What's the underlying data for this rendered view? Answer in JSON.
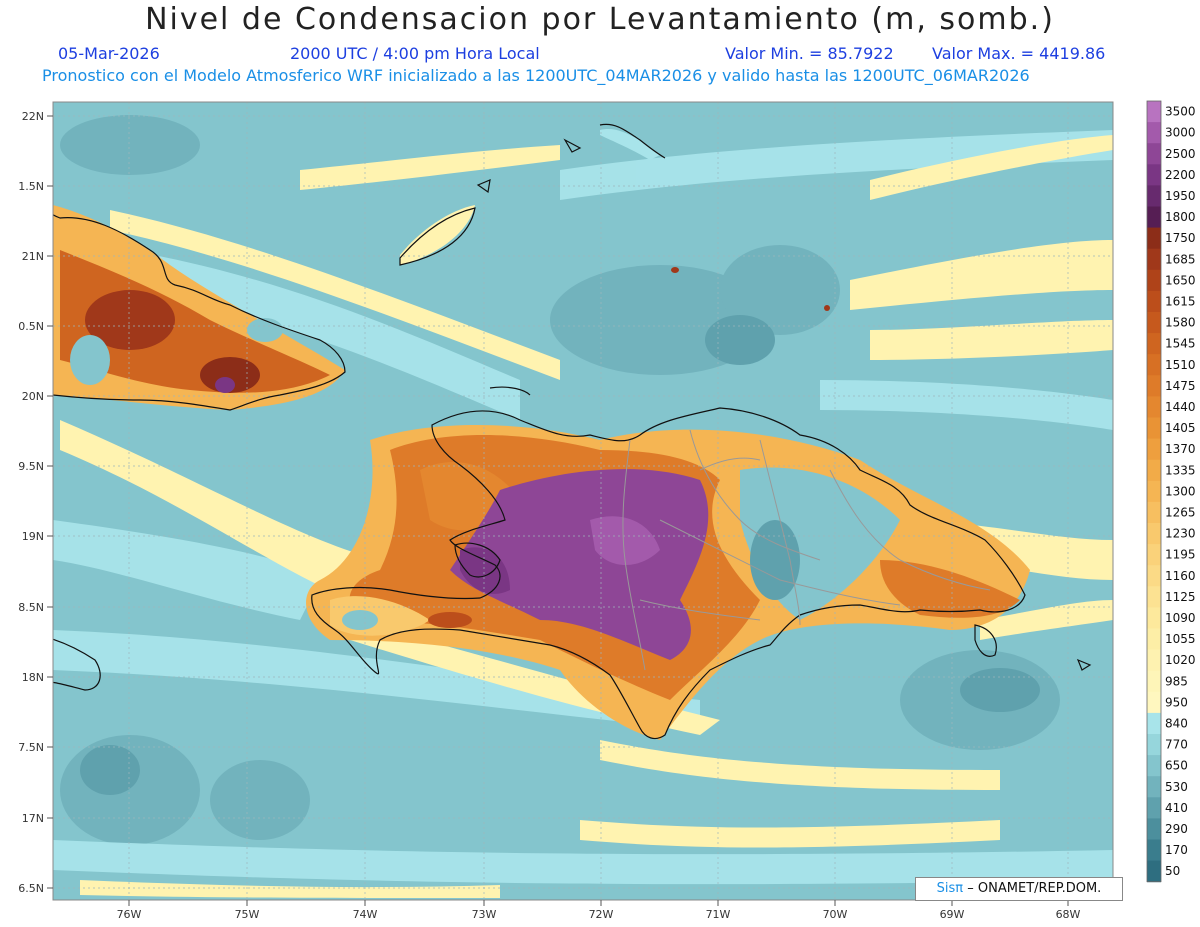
{
  "header": {
    "title": "Nivel de Condensacion por Levantamiento (m, somb.)",
    "date": "05-Mar-2026",
    "time": "2000 UTC / 4:00 pm Hora Local",
    "min_value": "Valor Min. = 85.7922",
    "max_value": "Valor Max. = 4419.86",
    "forecast": "Pronostico con el Modelo Atmosferico WRF inicializado a las 1200UTC_04MAR2026 y valido hasta las  1200UTC_06MAR2026"
  },
  "axes": {
    "lat_labels": [
      "22N",
      "1.5N",
      "21N",
      "0.5N",
      "20N",
      "9.5N",
      "19N",
      "8.5N",
      "18N",
      "7.5N",
      "17N",
      "6.5N"
    ],
    "lon_labels": [
      "76W",
      "75W",
      "74W",
      "73W",
      "72W",
      "71W",
      "70W",
      "69W",
      "68W"
    ]
  },
  "colorbar": {
    "labels": [
      "3500",
      "3000",
      "2500",
      "2200",
      "1950",
      "1800",
      "1750",
      "1685",
      "1650",
      "1615",
      "1580",
      "1545",
      "1510",
      "1475",
      "1440",
      "1405",
      "1370",
      "1335",
      "1300",
      "1265",
      "1230",
      "1195",
      "1160",
      "1125",
      "1090",
      "1055",
      "1020",
      "985",
      "950",
      "840",
      "770",
      "650",
      "530",
      "410",
      "290",
      "170",
      "50"
    ],
    "colors": [
      "#b873c0",
      "#a35aab",
      "#8e4696",
      "#7a3684",
      "#672a6e",
      "#561e54",
      "#8c2d18",
      "#a0381a",
      "#af4319",
      "#bc4e1b",
      "#c6591d",
      "#cf6520",
      "#d77024",
      "#de7b29",
      "#e4872f",
      "#e99335",
      "#ee9f3e",
      "#f2ab48",
      "#f5b553",
      "#f7bf60",
      "#f9c96d",
      "#fad27a",
      "#fbda86",
      "#fce292",
      "#fde99c",
      "#fdeea6",
      "#fef2b0",
      "#fef5b8",
      "#fff7bf",
      "#a8e4ea",
      "#96d6dc",
      "#84c5cd",
      "#72b3bd",
      "#5fa1ad",
      "#4c8f9d",
      "#3a7d8d",
      "#2e6e80"
    ]
  },
  "palette": {
    "water_light": "#a8e4ea",
    "water": "#84c5cd",
    "water_dark": "#5fa1ad",
    "yellow": "#fff3b0",
    "orange": "#e69a45",
    "brown": "#b5531c",
    "purple": "#8e4696",
    "coast": "#111111",
    "border": "#999999"
  },
  "credit": {
    "brand": "Sisπ",
    "text": "– ONAMET/REP.DOM."
  }
}
